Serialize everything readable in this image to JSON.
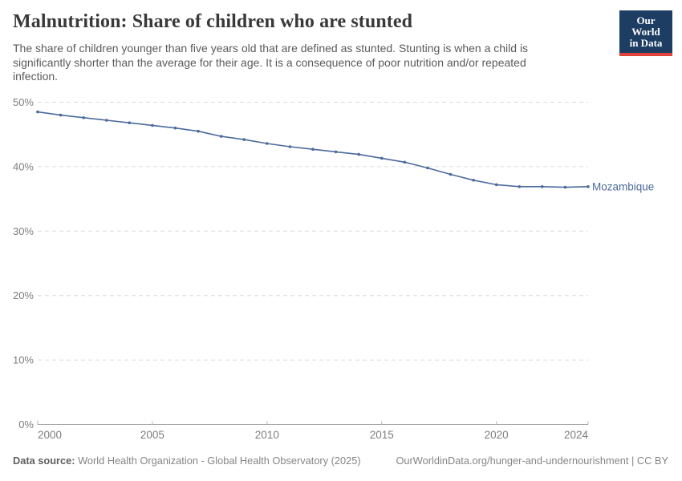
{
  "header": {
    "title": "Malnutrition: Share of children who are stunted",
    "subtitle": "The share of children younger than five years old that are defined as stunted. Stunting is when a child is significantly shorter than the average for their age. It is a consequence of poor nutrition and/or repeated infection."
  },
  "logo": {
    "line1": "Our World",
    "line2": "in Data",
    "bg_color": "#1d3d63",
    "stripe_color": "#e0413b"
  },
  "chart_data": {
    "type": "line",
    "title": "Malnutrition: Share of children who are stunted",
    "unit": "%",
    "xlabel": "",
    "ylabel": "",
    "x": [
      2000,
      2001,
      2002,
      2003,
      2004,
      2005,
      2006,
      2007,
      2008,
      2009,
      2010,
      2011,
      2012,
      2013,
      2014,
      2015,
      2016,
      2017,
      2018,
      2019,
      2020,
      2021,
      2022,
      2023,
      2024
    ],
    "series": [
      {
        "name": "Mozambique",
        "color": "#4c6a9c",
        "values": [
          48.5,
          48.0,
          47.6,
          47.2,
          46.8,
          46.4,
          46.0,
          45.5,
          44.7,
          44.2,
          43.6,
          43.1,
          42.7,
          42.3,
          41.9,
          41.3,
          40.7,
          39.8,
          38.8,
          37.9,
          37.2,
          36.9,
          36.9,
          36.8,
          36.9
        ]
      }
    ],
    "ylim": [
      0,
      50
    ],
    "xlim": [
      2000,
      2024
    ],
    "yticks": [
      0,
      10,
      20,
      30,
      40,
      50
    ],
    "xticks": [
      2000,
      2005,
      2010,
      2015,
      2020,
      2024
    ],
    "grid": "horizontal-dashed",
    "legend": "line-end-label",
    "colors": {
      "grid_line": "#dcdcdc",
      "axis_line": "#a8a8a8",
      "tick_mark": "#b5b5b5",
      "tick_label": "#7d7d7d"
    }
  },
  "footer": {
    "datasource_label": "Data source:",
    "datasource_text": " World Health Organization - Global Health Observatory (2025)",
    "attribution": "OurWorldinData.org/hunger-and-undernourishment | CC BY"
  }
}
